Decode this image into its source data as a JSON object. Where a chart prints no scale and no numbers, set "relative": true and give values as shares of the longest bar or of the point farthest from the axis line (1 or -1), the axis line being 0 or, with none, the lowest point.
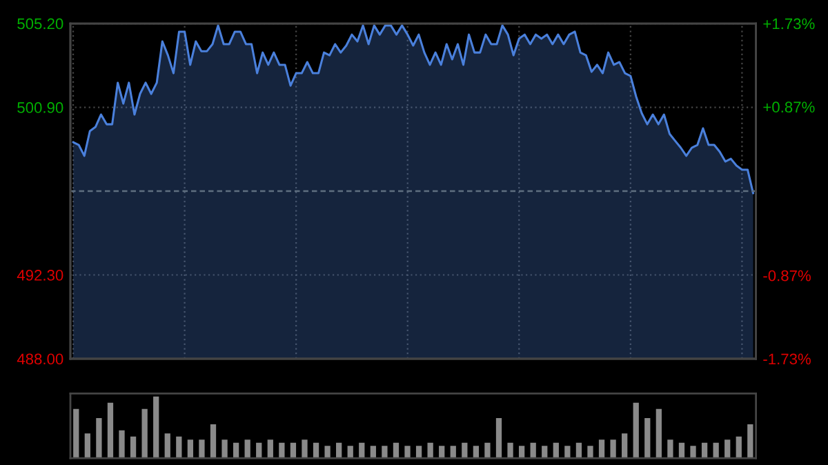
{
  "chart_data": [
    {
      "type": "area",
      "categories": [
        null,
        null,
        null,
        null,
        null,
        null,
        null,
        null,
        null,
        null,
        null,
        null,
        null,
        null,
        null,
        null,
        null,
        null,
        null,
        null,
        null,
        null,
        null,
        null,
        null,
        null,
        null,
        null,
        null,
        null,
        null,
        null,
        null,
        null,
        null,
        null,
        null,
        null,
        null,
        null,
        null,
        null,
        null,
        null,
        null,
        null,
        null,
        null,
        null,
        null,
        null,
        null,
        null,
        null,
        null,
        null,
        null,
        null,
        null,
        null,
        null,
        null,
        null,
        null,
        null,
        null,
        null,
        null,
        null,
        null,
        null,
        null,
        null,
        null,
        null,
        null,
        null,
        null,
        null,
        null,
        null,
        null,
        null,
        null,
        null,
        null,
        null,
        null,
        null,
        null,
        null,
        null,
        null,
        null,
        null,
        null,
        null,
        null,
        null,
        null,
        null,
        null,
        null,
        null,
        null,
        null,
        null,
        null,
        null,
        null,
        null,
        null,
        null,
        null,
        null,
        null,
        null,
        null,
        null,
        null,
        null,
        null,
        null
      ],
      "series": [
        {
          "color": "#4a80dc",
          "values": [
            499.11,
            498.97,
            498.41,
            499.68,
            499.89,
            500.53,
            500.03,
            500.03,
            502.16,
            501.09,
            502.16,
            500.53,
            501.59,
            502.16,
            501.59,
            502.16,
            504.28,
            503.57,
            502.65,
            504.78,
            504.78,
            503.08,
            504.28,
            503.78,
            503.78,
            504.14,
            505.1,
            504.14,
            504.14,
            504.78,
            504.78,
            504.14,
            504.14,
            502.65,
            503.71,
            503.08,
            503.71,
            503.08,
            503.08,
            502.01,
            502.65,
            502.65,
            503.22,
            502.65,
            502.65,
            503.71,
            503.57,
            504.14,
            503.71,
            504.07,
            504.63,
            504.28,
            505.1,
            504.14,
            505.1,
            504.63,
            505.1,
            505.1,
            504.63,
            505.1,
            504.63,
            504.07,
            504.63,
            503.71,
            503.08,
            503.71,
            503.08,
            504.14,
            503.36,
            504.14,
            503.08,
            504.63,
            503.71,
            503.71,
            504.63,
            504.14,
            504.14,
            505.1,
            504.63,
            503.57,
            504.42,
            504.63,
            504.14,
            504.63,
            504.42,
            504.63,
            504.14,
            504.63,
            504.14,
            504.63,
            504.78,
            503.71,
            503.57,
            502.72,
            503.08,
            502.65,
            503.71,
            503.08,
            503.22,
            502.65,
            502.51,
            501.45,
            500.6,
            500.03,
            500.53,
            500.03,
            500.53,
            499.54,
            499.18,
            498.83,
            498.41,
            498.83,
            498.97,
            499.82,
            498.97,
            498.97,
            498.62,
            498.12,
            498.26,
            497.91,
            497.7,
            497.7,
            496.49
          ]
        }
      ],
      "ylim": [
        488,
        505.2
      ],
      "yticks": [
        {
          "value": 488,
          "label": "488.00"
        },
        {
          "value": 492.3,
          "label": "492.30"
        },
        {
          "value": 500.9,
          "label": "500.90"
        },
        {
          "value": 505.2,
          "label": "505.20"
        }
      ],
      "y2lim": [
        -1.73,
        1.73
      ],
      "y2ticks": [
        {
          "value": -1.73,
          "label": "-1.73%"
        },
        {
          "value": -0.87,
          "label": "-0.87%"
        },
        {
          "value": 0.87,
          "label": "+0.87%"
        },
        {
          "value": 1.73,
          "label": "+1.73%"
        }
      ],
      "ref_lines": [
        {
          "axis": "y",
          "value": 496.6,
          "line_style": "dashed",
          "color": "#5f6f80"
        }
      ],
      "grid": true,
      "tick_labels": "y"
    },
    {
      "type": "bar",
      "relative": true,
      "color": "#8a8a8a",
      "tick_labels": false,
      "categories": [
        null,
        null,
        null,
        null,
        null,
        null,
        null,
        null,
        null,
        null,
        null,
        null,
        null,
        null,
        null,
        null,
        null,
        null,
        null,
        null,
        null,
        null,
        null,
        null,
        null,
        null,
        null,
        null,
        null,
        null,
        null,
        null,
        null,
        null,
        null,
        null,
        null,
        null,
        null,
        null,
        null,
        null,
        null,
        null,
        null,
        null,
        null,
        null,
        null,
        null,
        null,
        null,
        null,
        null,
        null,
        null,
        null,
        null,
        null,
        null
      ],
      "values": [
        0.8,
        0.4,
        0.65,
        0.9,
        0.45,
        0.35,
        0.8,
        1.0,
        0.4,
        0.35,
        0.3,
        0.3,
        0.55,
        0.3,
        0.25,
        0.3,
        0.25,
        0.3,
        0.25,
        0.25,
        0.3,
        0.25,
        0.2,
        0.25,
        0.2,
        0.25,
        0.2,
        0.2,
        0.25,
        0.2,
        0.2,
        0.25,
        0.2,
        0.2,
        0.25,
        0.2,
        0.25,
        0.65,
        0.25,
        0.2,
        0.25,
        0.2,
        0.25,
        0.2,
        0.25,
        0.2,
        0.3,
        0.3,
        0.4,
        0.9,
        0.65,
        0.8,
        0.3,
        0.25,
        0.2,
        0.25,
        0.25,
        0.3,
        0.35,
        0.55
      ]
    }
  ]
}
